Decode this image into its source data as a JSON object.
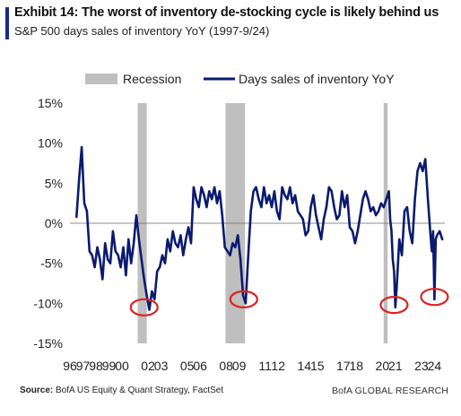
{
  "header": {
    "title": "Exhibit 14: The worst of inventory de-stocking cycle is likely behind us",
    "subtitle": "S&P 500 days sales of inventory YoY (1997-9/24)"
  },
  "footer": {
    "source_label": "Source:",
    "source_text": " BofA US Equity & Quant Strategy, FactSet",
    "brand": "BofA GLOBAL RESEARCH"
  },
  "chart_data": {
    "type": "line",
    "xlim": [
      1996,
      2024.8
    ],
    "ylim": [
      -15,
      15
    ],
    "x_ticks": [
      1996,
      1997,
      1998,
      1999,
      2000,
      2002,
      2003,
      2005,
      2006,
      2008,
      2009,
      2011,
      2012,
      2014,
      2015,
      2017,
      2018,
      2020,
      2021,
      2023,
      2024
    ],
    "x_tick_labels": [
      "96",
      "97",
      "98",
      "99",
      "00",
      "02",
      "03",
      "05",
      "06",
      "08",
      "09",
      "11",
      "12",
      "14",
      "15",
      "17",
      "18",
      "20",
      "21",
      "23",
      "24"
    ],
    "y_ticks": [
      -15,
      -10,
      -5,
      0,
      5,
      10,
      15
    ],
    "y_tick_labels": [
      "-15%",
      "-10%",
      "-5%",
      "0%",
      "5%",
      "10%",
      "15%"
    ],
    "legend": [
      {
        "label": "Recession",
        "kind": "band",
        "color": "#bfbfbf"
      },
      {
        "label": "Days sales of inventory YoY",
        "kind": "line",
        "color": "#0a1a6e"
      }
    ],
    "legend_position": "top",
    "grid": false,
    "recessions": [
      [
        2001.2,
        2001.9
      ],
      [
        2007.95,
        2009.45
      ],
      [
        2020.1,
        2020.4
      ]
    ],
    "highlight_circles": [
      {
        "x": 2001.7,
        "y": -10.5
      },
      {
        "x": 2009.35,
        "y": -9.5
      },
      {
        "x": 2020.9,
        "y": -10.2
      },
      {
        "x": 2024.0,
        "y": -9.2
      }
    ],
    "series": [
      {
        "name": "Days sales of inventory YoY",
        "color": "#0a1a6e",
        "x": [
          1996.5,
          1996.7,
          1996.9,
          1997.0,
          1997.1,
          1997.3,
          1997.5,
          1997.7,
          1997.9,
          1998.1,
          1998.3,
          1998.5,
          1998.7,
          1998.9,
          1999.1,
          1999.3,
          1999.5,
          1999.7,
          1999.9,
          2000.1,
          2000.3,
          2000.5,
          2000.7,
          2000.9,
          2001.1,
          2001.3,
          2001.5,
          2001.7,
          2001.9,
          2002.1,
          2002.3,
          2002.5,
          2002.7,
          2002.9,
          2003.1,
          2003.3,
          2003.5,
          2003.7,
          2003.9,
          2004.1,
          2004.3,
          2004.5,
          2004.7,
          2004.9,
          2005.1,
          2005.3,
          2005.5,
          2005.7,
          2005.9,
          2006.1,
          2006.3,
          2006.5,
          2006.7,
          2006.9,
          2007.1,
          2007.3,
          2007.5,
          2007.7,
          2007.9,
          2008.1,
          2008.3,
          2008.5,
          2008.7,
          2008.9,
          2009.1,
          2009.3,
          2009.5,
          2009.7,
          2009.9,
          2010.1,
          2010.3,
          2010.5,
          2010.7,
          2010.9,
          2011.1,
          2011.3,
          2011.5,
          2011.7,
          2011.9,
          2012.1,
          2012.3,
          2012.5,
          2012.7,
          2012.9,
          2013.1,
          2013.3,
          2013.5,
          2013.7,
          2013.9,
          2014.1,
          2014.3,
          2014.5,
          2014.7,
          2014.9,
          2015.1,
          2015.3,
          2015.5,
          2015.7,
          2015.9,
          2016.1,
          2016.3,
          2016.5,
          2016.7,
          2016.9,
          2017.1,
          2017.3,
          2017.5,
          2017.7,
          2017.9,
          2018.1,
          2018.3,
          2018.5,
          2018.7,
          2018.9,
          2019.1,
          2019.3,
          2019.5,
          2019.7,
          2019.9,
          2020.1,
          2020.3,
          2020.5,
          2020.6,
          2020.7,
          2020.8,
          2020.9,
          2021.0,
          2021.1,
          2021.3,
          2021.5,
          2021.7,
          2021.9,
          2022.1,
          2022.3,
          2022.5,
          2022.7,
          2022.9,
          2023.1,
          2023.3,
          2023.5,
          2023.7,
          2023.8,
          2023.9,
          2024.0,
          2024.1,
          2024.2,
          2024.4,
          2024.6
        ],
        "y": [
          0.8,
          5.5,
          9.5,
          6.0,
          2.5,
          1.5,
          -3.5,
          -4.0,
          -5.5,
          -3.0,
          -4.5,
          -7.0,
          -2.5,
          -4.5,
          -5.0,
          -1.0,
          -3.5,
          -4.0,
          -5.5,
          -3.0,
          -6.5,
          -2.0,
          -5.0,
          -2.5,
          1.0,
          -2.0,
          -4.5,
          -7.0,
          -9.0,
          -10.8,
          -8.5,
          -9.5,
          -6.0,
          -5.5,
          -4.0,
          -5.0,
          -2.0,
          -3.5,
          -1.0,
          -2.5,
          -3.0,
          -1.5,
          -4.0,
          -2.0,
          -0.5,
          -2.5,
          4.5,
          3.0,
          2.0,
          4.5,
          3.5,
          2.0,
          4.0,
          3.0,
          4.5,
          2.5,
          4.0,
          1.0,
          -3.0,
          -3.5,
          -4.0,
          -2.5,
          -3.0,
          -1.5,
          -4.5,
          -9.0,
          -10.0,
          -4.0,
          1.5,
          4.0,
          4.5,
          3.0,
          2.0,
          4.5,
          2.5,
          3.5,
          2.0,
          4.0,
          1.5,
          0.5,
          4.5,
          3.5,
          3.0,
          4.5,
          2.5,
          3.5,
          1.5,
          1.0,
          0.5,
          -1.5,
          -1.0,
          2.0,
          3.5,
          1.0,
          -0.5,
          -2.0,
          0.5,
          2.0,
          4.5,
          4.0,
          2.0,
          0.5,
          1.0,
          4.0,
          2.0,
          3.5,
          -0.5,
          -1.0,
          -2.5,
          -1.0,
          1.0,
          3.0,
          4.0,
          3.0,
          1.5,
          2.0,
          1.0,
          1.5,
          2.5,
          2.0,
          3.0,
          4.0,
          0.5,
          -1.0,
          -4.5,
          -6.0,
          -10.5,
          -8.0,
          -2.0,
          -4.0,
          1.5,
          2.0,
          -1.0,
          -2.5,
          3.0,
          6.5,
          7.5,
          6.5,
          8.0,
          3.0,
          -1.5,
          -3.5,
          -1.0,
          -9.5,
          -2.0,
          -1.5,
          -1.0,
          -2.0
        ]
      }
    ]
  }
}
